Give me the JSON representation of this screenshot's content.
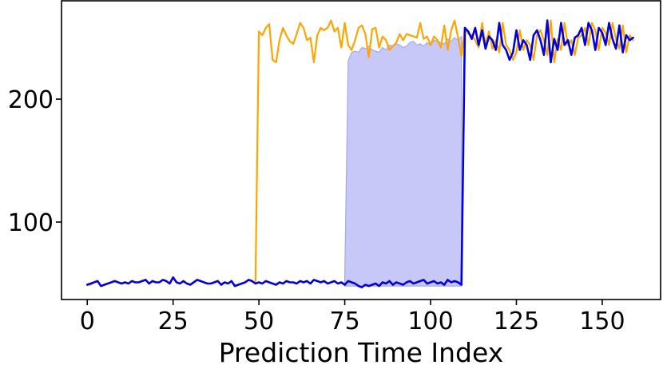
{
  "chart_data": {
    "type": "line",
    "xlabel": "Prediction Time Index",
    "ylabel": "",
    "title": "",
    "xlim": [
      -7.5,
      167
    ],
    "ylim": [
      37,
      280
    ],
    "xticks": [
      0,
      25,
      50,
      75,
      100,
      125,
      150
    ],
    "yticks": [
      100,
      200
    ],
    "grid": false,
    "legend": "none",
    "colors": {
      "actual": "#FFA500",
      "predicted": "#0000E0",
      "band_fill": "#C8C8F8",
      "band_edge": "#A6A6F0"
    },
    "series": [
      {
        "key": "actual",
        "x_start": 0,
        "values": [
          49,
          49,
          51,
          52,
          48,
          49,
          50,
          51,
          52,
          51,
          50,
          51,
          50,
          52,
          51,
          51,
          52,
          53,
          50,
          52,
          51,
          51,
          53,
          52,
          50,
          55,
          51,
          50,
          52,
          50,
          49,
          51,
          53,
          52,
          51,
          50,
          50,
          51,
          52,
          49,
          51,
          50,
          52,
          48,
          49,
          50,
          51,
          53,
          52,
          50,
          255,
          252,
          258,
          261,
          232,
          230,
          248,
          258,
          252,
          247,
          245,
          253,
          262,
          258,
          248,
          250,
          230,
          252,
          258,
          256,
          258,
          264,
          255,
          258,
          242,
          262,
          244,
          240,
          248,
          258,
          260,
          253,
          234,
          257,
          258,
          242,
          251,
          248,
          240,
          243,
          246,
          253,
          248,
          253,
          252,
          251,
          250,
          262,
          249,
          251,
          244,
          251,
          248,
          242,
          260,
          240,
          256,
          264,
          250,
          235,
          258,
          253,
          252,
          248,
          242,
          262,
          244,
          255,
          241,
          248,
          238,
          262,
          244,
          240,
          232,
          238,
          256,
          240,
          248,
          244,
          232,
          252,
          256,
          248,
          236,
          264,
          230,
          249,
          240,
          262,
          244,
          248,
          236,
          250,
          252,
          258,
          244,
          262,
          256,
          240,
          258,
          254,
          244,
          262,
          249,
          241,
          260,
          238,
          252,
          248
        ]
      },
      {
        "key": "predicted",
        "x_start": 0,
        "values": [
          49,
          50,
          51,
          52,
          48,
          49,
          50,
          51,
          52,
          51,
          50,
          51,
          50,
          52,
          51,
          51,
          52,
          53,
          50,
          52,
          51,
          51,
          53,
          52,
          50,
          55,
          51,
          50,
          52,
          50,
          49,
          51,
          53,
          52,
          51,
          50,
          50,
          51,
          52,
          49,
          51,
          50,
          52,
          48,
          49,
          50,
          51,
          53,
          52,
          50,
          51,
          50,
          52,
          51,
          50,
          49,
          51,
          50,
          52,
          51,
          51,
          50,
          52,
          51,
          52,
          50,
          53,
          52,
          51,
          52,
          50,
          51,
          52,
          50,
          51,
          49,
          52,
          51,
          50,
          48,
          47,
          49,
          48,
          49,
          50,
          48,
          51,
          50,
          52,
          49,
          51,
          50,
          49,
          51,
          52,
          50,
          51,
          52,
          53,
          50,
          51,
          52,
          50,
          51,
          49,
          53,
          51,
          52,
          51,
          49,
          258,
          255,
          249,
          258,
          244,
          256,
          241,
          251,
          248,
          240,
          262,
          244,
          240,
          232,
          238,
          256,
          240,
          248,
          244,
          232,
          252,
          256,
          248,
          236,
          264,
          230,
          249,
          240,
          262,
          244,
          248,
          236,
          250,
          252,
          258,
          244,
          262,
          256,
          240,
          258,
          254,
          244,
          262,
          249,
          241,
          260,
          238,
          252,
          248,
          250
        ],
        "band": {
          "from": 75,
          "to": 109,
          "lower": [
            48,
            48,
            48,
            48,
            48,
            48,
            48,
            48,
            48,
            48,
            48,
            48,
            48,
            48,
            48,
            48,
            48,
            48,
            48,
            48,
            48,
            48,
            48,
            48,
            48,
            48,
            48,
            48,
            48,
            48,
            48,
            48,
            48,
            48,
            48
          ],
          "upper": [
            55,
            231,
            238,
            239,
            238,
            242,
            241,
            243,
            240,
            239,
            238,
            242,
            240,
            244,
            243,
            245,
            244,
            242,
            243,
            246,
            247,
            244,
            245,
            243,
            246,
            244,
            248,
            247,
            246,
            245,
            249,
            247,
            250,
            248,
            251
          ]
        }
      }
    ]
  }
}
